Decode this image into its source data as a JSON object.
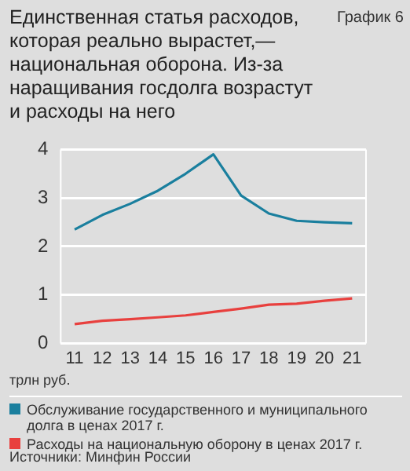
{
  "chart_data": {
    "type": "line",
    "title": "Единственная статья расходов, которая реально вырастет,— национальная оборона. Из-за наращивания госдолга возрастут и расходы на него",
    "ylabel": "трлн руб.",
    "annotations": [
      "График 6",
      "Источники: Минфин России"
    ],
    "categories": [
      "11",
      "12",
      "13",
      "14",
      "15",
      "16",
      "17",
      "18",
      "19",
      "20",
      "21"
    ],
    "series": [
      {
        "name": "Обслуживание государственного и муниципального долга в ценах 2017 г.",
        "color": "#1a7f9e",
        "values": [
          2.35,
          2.65,
          2.88,
          3.15,
          3.5,
          3.9,
          3.05,
          2.68,
          2.53,
          2.5,
          2.48
        ]
      },
      {
        "name": "Расходы на национальную оборону в ценах 2017 г.",
        "color": "#e8403e",
        "values": [
          0.4,
          0.47,
          0.5,
          0.54,
          0.58,
          0.65,
          0.72,
          0.8,
          0.82,
          0.88,
          0.93
        ]
      }
    ],
    "ylim": [
      0,
      4
    ],
    "yticks": [
      0,
      1,
      2,
      3,
      4
    ],
    "grid": "y",
    "legend": "bottom",
    "marker": "none",
    "line_style": "solid"
  }
}
